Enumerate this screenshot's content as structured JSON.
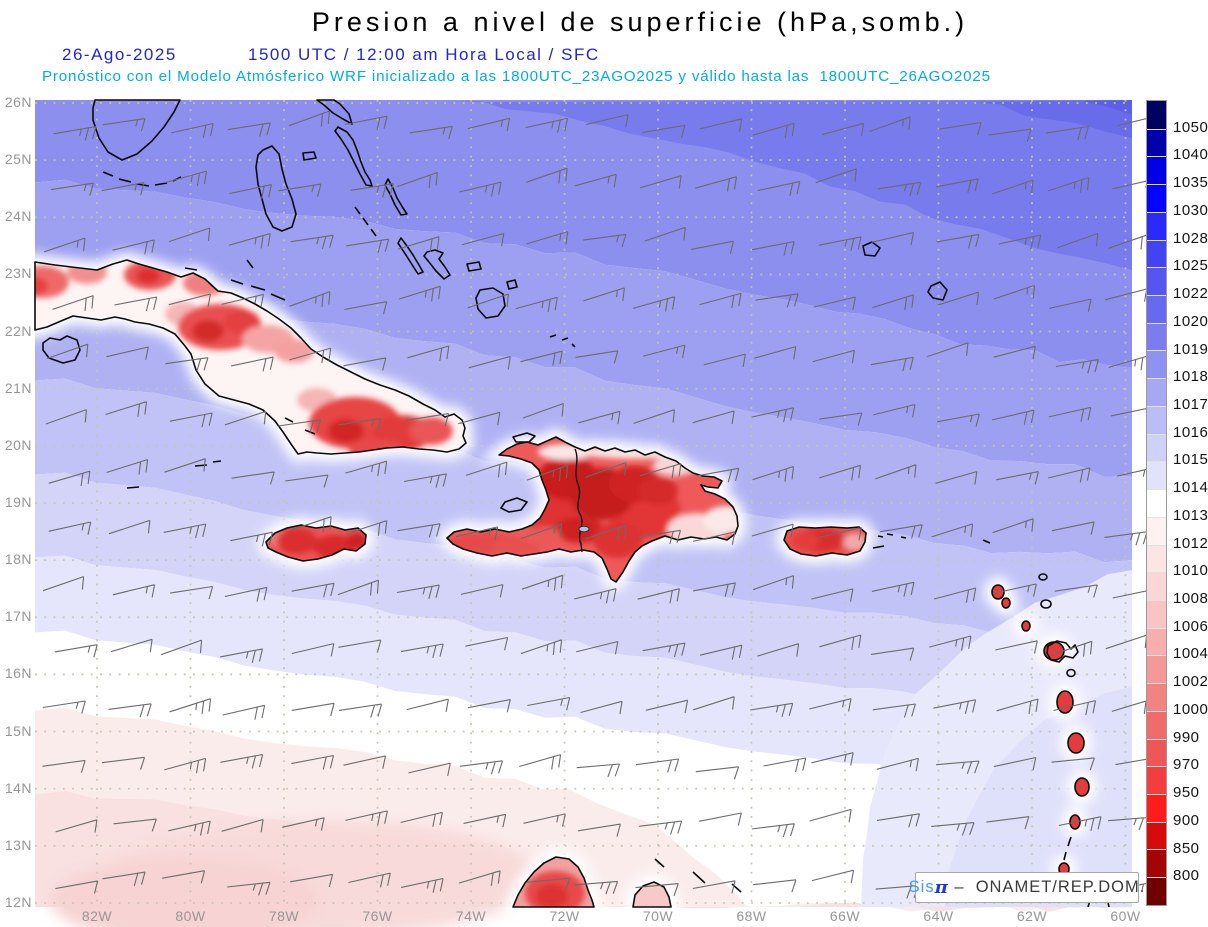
{
  "header": {
    "title": "Presion a nivel de superficie (hPa,somb.)",
    "date": "26-Ago-2025",
    "validity": "1500 UTC / 12:00 am Hora Local / SFC",
    "forecast": "Pronóstico con el Modelo Atmósferico WRF inicializado a las 1800UTC_23AGO2025 y válido hasta las  1800UTC_26AGO2025",
    "title_color": "#000000",
    "date_color": "#2326D0",
    "forecast_color": "#00ACE6"
  },
  "credit": {
    "brand": "Sis",
    "pi": "π",
    "sep": " –  ",
    "org": "ONAMET/REP.DOM.",
    "brand_color": "#3E9BFF",
    "pi_color": "#2038D8"
  },
  "chart_data": {
    "type": "heatmap",
    "title": "Presion a nivel de superficie (hPa,somb.)",
    "units": "hPa",
    "x_ticks": [
      "82W",
      "80W",
      "78W",
      "76W",
      "74W",
      "72W",
      "70W",
      "68W",
      "66W",
      "64W",
      "62W",
      "60W"
    ],
    "y_ticks": [
      "26N",
      "25N",
      "24N",
      "23N",
      "22N",
      "21N",
      "20N",
      "19N",
      "18N",
      "17N",
      "16N",
      "15N",
      "14N",
      "13N",
      "12N"
    ],
    "colorbar_levels": [
      "1050",
      "1040",
      "1035",
      "1030",
      "1028",
      "1025",
      "1022",
      "1020",
      "1019",
      "1018",
      "1017",
      "1016",
      "1015",
      "1014",
      "1013",
      "1012",
      "1010",
      "1008",
      "1006",
      "1004",
      "1002",
      "1000",
      "990",
      "970",
      "950",
      "900",
      "850",
      "800"
    ],
    "colorbar_colors": [
      "#000060",
      "#0000AA",
      "#0000E4",
      "#0505FF",
      "#2A2BFA",
      "#4243F3",
      "#5556F0",
      "#6769EE",
      "#7B7DEF",
      "#9092F1",
      "#A6A8F3",
      "#BBBDF6",
      "#CFD1F8",
      "#E2E3FB",
      "#FFFFFF",
      "#FDF1F1",
      "#FCE5E5",
      "#FBD6D6",
      "#F9C4C4",
      "#F7AEAE",
      "#F59898",
      "#F28383",
      "#F06C6C",
      "#EE5757",
      "#F43E3E",
      "#FF1C1C",
      "#D60C0C",
      "#A40404",
      "#700000"
    ],
    "wind_barbs": "easterly trade-wind barbs (5-15 kt) on ~1 degree grid, gray",
    "shading_notes": "Ocean pressure decreases from ~1022 hPa (NE corner) to ~1012 hPa (south); white band ~1013-1015 near 15-17N; mountainous land (Cuba, Hispaniola, Jamaica, Puerto Rico, Lesser Antilles, Guajira) shaded red (below 1000 hPa) with white coastal halos"
  }
}
